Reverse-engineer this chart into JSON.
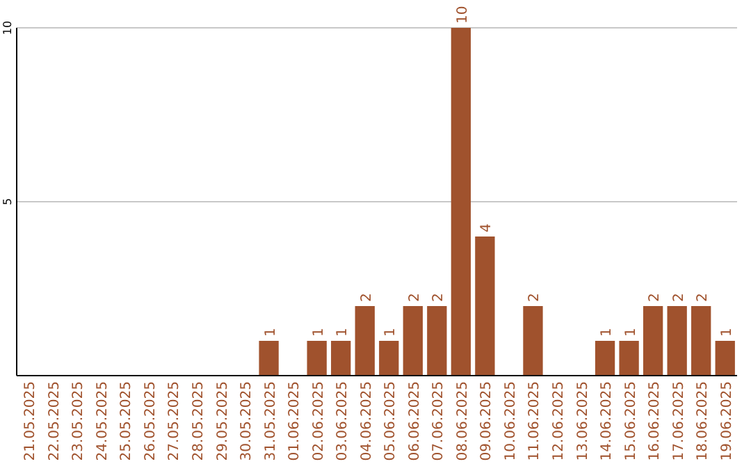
{
  "chart_data": {
    "type": "bar",
    "categories": [
      "21.05.2025",
      "22.05.2025",
      "23.05.2025",
      "24.05.2025",
      "25.05.2025",
      "26.05.2025",
      "27.05.2025",
      "28.05.2025",
      "29.05.2025",
      "30.05.2025",
      "31.05.2025",
      "01.06.2025",
      "02.06.2025",
      "03.06.2025",
      "04.06.2025",
      "05.06.2025",
      "06.06.2025",
      "07.06.2025",
      "08.06.2025",
      "09.06.2025",
      "10.06.2025",
      "11.06.2025",
      "12.06.2025",
      "13.06.2025",
      "14.06.2025",
      "15.06.2025",
      "16.06.2025",
      "17.06.2025",
      "18.06.2025",
      "19.06.2025"
    ],
    "values": [
      0,
      0,
      0,
      0,
      0,
      0,
      0,
      0,
      0,
      0,
      1,
      0,
      1,
      1,
      2,
      1,
      2,
      2,
      10,
      4,
      0,
      2,
      0,
      0,
      1,
      1,
      2,
      2,
      2,
      1
    ],
    "value_labels": [
      null,
      null,
      null,
      null,
      null,
      null,
      null,
      null,
      null,
      null,
      "1",
      null,
      "1",
      "1",
      "2",
      "1",
      "2",
      "2",
      "10",
      "4",
      null,
      "2",
      null,
      null,
      "1",
      "1",
      "2",
      "2",
      "2",
      "1"
    ],
    "color": "#a0522d",
    "ylim": [
      0,
      10
    ],
    "yticks": [
      5,
      10
    ],
    "grid": "y"
  }
}
